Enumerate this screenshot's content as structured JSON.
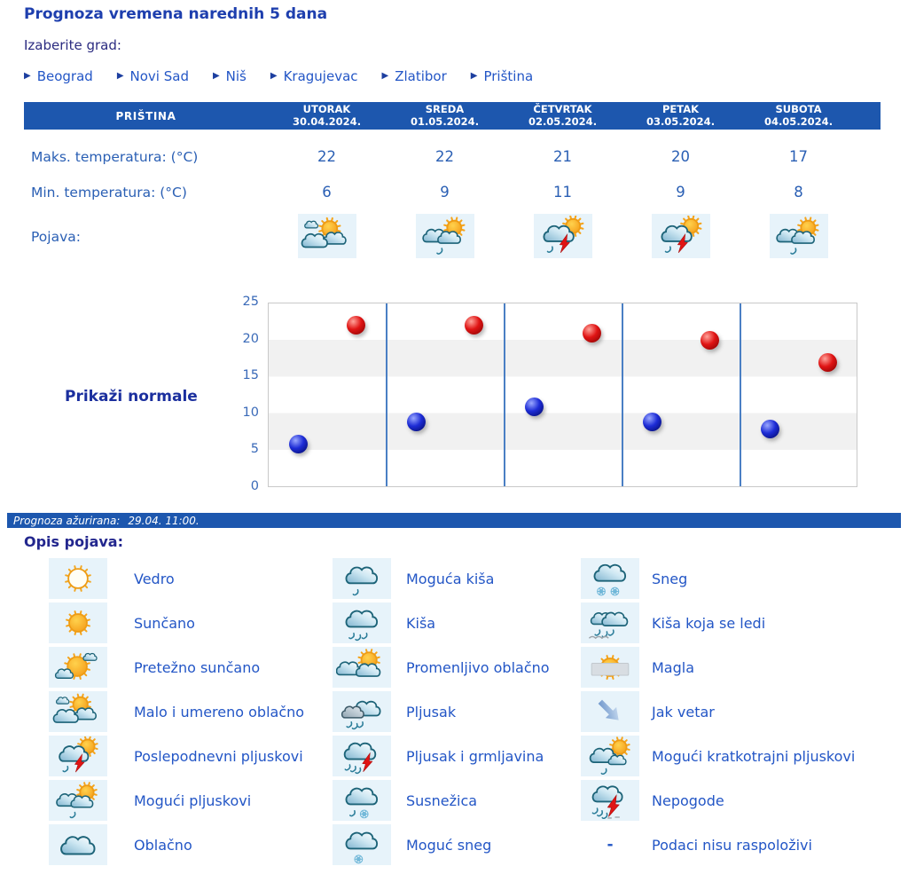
{
  "page": {
    "title": "Prognoza vremena narednih 5 dana",
    "choose_city_label": "Izaberite grad:"
  },
  "cities": [
    {
      "label": "Beograd"
    },
    {
      "label": "Novi Sad"
    },
    {
      "label": "Niš"
    },
    {
      "label": "Kragujevac"
    },
    {
      "label": "Zlatibor"
    },
    {
      "label": "Priština"
    }
  ],
  "forecast": {
    "station": "PRIŠTINA",
    "max_label": "Maks. temperatura: (°C)",
    "min_label": "Min. temperatura: (°C)",
    "pojava_label": "Pojava:",
    "days": [
      {
        "name": "UTORAK",
        "date": "30.04.2024.",
        "max": 22,
        "min": 6,
        "icon": "clouds-sun"
      },
      {
        "name": "SREDA",
        "date": "01.05.2024.",
        "max": 22,
        "min": 9,
        "icon": "clouds-sun-drop"
      },
      {
        "name": "ČETVRTAK",
        "date": "02.05.2024.",
        "max": 21,
        "min": 11,
        "icon": "cloud-sun-storm-rain"
      },
      {
        "name": "PETAK",
        "date": "03.05.2024.",
        "max": 20,
        "min": 9,
        "icon": "cloud-sun-storm-rain"
      },
      {
        "name": "SUBOTA",
        "date": "04.05.2024.",
        "max": 17,
        "min": 8,
        "icon": "clouds-sun-drop"
      }
    ]
  },
  "normals": {
    "label": "Prikaži normale"
  },
  "chart_data": {
    "type": "scatter",
    "x_categories": [
      "UTORAK 30.04.2024.",
      "SREDA 01.05.2024.",
      "ČETVRTAK 02.05.2024.",
      "PETAK 03.05.2024.",
      "SUBOTA 04.05.2024."
    ],
    "series": [
      {
        "name": "Maks. temperatura (°C)",
        "color": "#e01414",
        "values": [
          22,
          22,
          21,
          20,
          17
        ]
      },
      {
        "name": "Min. temperatura (°C)",
        "color": "#1d2cd6",
        "values": [
          6,
          9,
          11,
          9,
          8
        ]
      }
    ],
    "ylim": [
      0,
      25
    ],
    "yticks": [
      0,
      5,
      10,
      15,
      20,
      25
    ],
    "grid": "horizontal-bands-every-5",
    "legend_position": "none"
  },
  "updated": {
    "label": "Prognoza ažurirana:",
    "value": "29.04. 11:00."
  },
  "legend": {
    "heading": "Opis pojava:",
    "dash_symbol": "-",
    "columns": [
      [
        {
          "icon": "sun-outline",
          "label": "Vedro"
        },
        {
          "icon": "sun",
          "label": "Sunčano"
        },
        {
          "icon": "sun-small-cloud",
          "label": "Pretežno sunčano"
        },
        {
          "icon": "clouds-sun",
          "label": "Malo i umereno oblačno"
        },
        {
          "icon": "cloud-sun-storm-rain",
          "label": "Poslepodnevni pljuskovi"
        },
        {
          "icon": "clouds-sun-drop",
          "label": "Mogući pljuskovi"
        },
        {
          "icon": "cloud",
          "label": "Oblačno"
        }
      ],
      [
        {
          "icon": "cloud-drop",
          "label": "Moguća kiša"
        },
        {
          "icon": "cloud-rain",
          "label": "Kiša"
        },
        {
          "icon": "clouds-sun2",
          "label": "Promenljivo oblačno"
        },
        {
          "icon": "dark-clouds-rain",
          "label": "Pljusak"
        },
        {
          "icon": "cloud-storm-rain",
          "label": "Pljusak i grmljavina"
        },
        {
          "icon": "cloud-drop-flake",
          "label": "Susnežica"
        },
        {
          "icon": "cloud-flake",
          "label": "Moguć sneg"
        }
      ],
      [
        {
          "icon": "cloud-flakes",
          "label": "Sneg"
        },
        {
          "icon": "clouds-rain-ice",
          "label": "Kiša koja se ledi"
        },
        {
          "icon": "fog-sun",
          "label": "Magla"
        },
        {
          "icon": "wind-arrow",
          "label": "Jak vetar"
        },
        {
          "icon": "cloud-sun-drop",
          "label": "Mogući kratkotrajni pljuskovi"
        },
        {
          "icon": "cloud-storm-heavy",
          "label": "Nepogode"
        },
        {
          "icon": "dash",
          "label": "Podaci nisu raspoloživi"
        }
      ]
    ]
  },
  "colors": {
    "header_bar": "#1d57ae",
    "max_dot": "#e01414",
    "min_dot": "#1d2cd6",
    "link_text": "#2356c6",
    "icon_cell_bg": "#e7f3fa",
    "chart_band_gray": "#f1f1f1",
    "chart_divider": "#4a7fc4"
  }
}
